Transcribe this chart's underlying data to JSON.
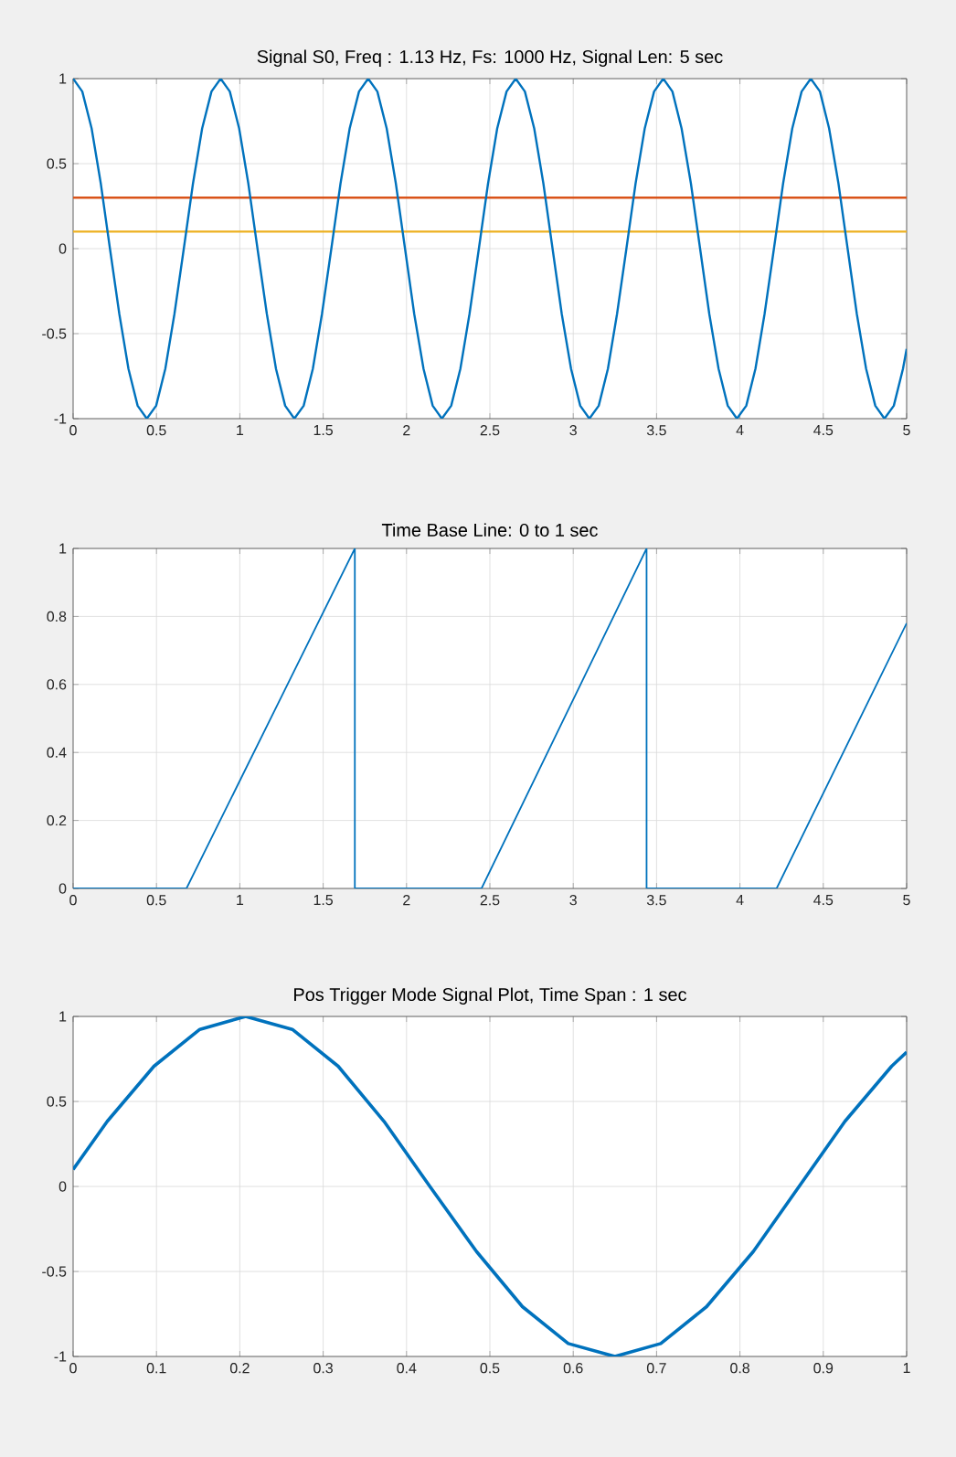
{
  "chart_data": [
    {
      "type": "line",
      "title": "Signal S0, Freq : 1.13 Hz, Fs: 1000 Hz, Signal Len: 5 sec",
      "xlim": [
        0,
        5
      ],
      "ylim": [
        -1,
        1
      ],
      "xticks": [
        0,
        0.5,
        1,
        1.5,
        2,
        2.5,
        3,
        3.5,
        4,
        4.5,
        5
      ],
      "yticks": [
        -1,
        -0.5,
        0,
        0.5,
        1
      ],
      "grid": true,
      "marker": "none",
      "line_style": "solid",
      "series": [
        {
          "color": "#0072bd",
          "x": [
            0,
            0.055,
            0.111,
            0.166,
            0.221,
            0.277,
            0.332,
            0.387,
            0.442,
            0.498,
            0.553,
            0.608,
            0.664,
            0.719,
            0.774,
            0.83,
            0.885,
            0.94,
            0.996,
            1.051,
            1.106,
            1.162,
            1.217,
            1.272,
            1.327,
            1.383,
            1.438,
            1.493,
            1.549,
            1.604,
            1.659,
            1.715,
            1.77,
            1.825,
            1.881,
            1.936,
            1.991,
            2.046,
            2.102,
            2.157,
            2.212,
            2.268,
            2.323,
            2.378,
            2.434,
            2.489,
            2.544,
            2.6,
            2.655,
            2.71,
            2.766,
            2.821,
            2.876,
            2.931,
            2.987,
            3.042,
            3.097,
            3.153,
            3.208,
            3.263,
            3.319,
            3.374,
            3.429,
            3.485,
            3.54,
            3.595,
            3.65,
            3.706,
            3.761,
            3.816,
            3.872,
            3.927,
            3.982,
            4.038,
            4.093,
            4.148,
            4.204,
            4.259,
            4.314,
            4.37,
            4.425,
            4.48,
            4.535,
            4.591,
            4.646,
            4.701,
            4.757,
            4.812,
            4.867,
            4.923,
            4.978,
            5
          ],
          "values": [
            1,
            0.924,
            0.707,
            0.383,
            0,
            -0.383,
            -0.707,
            -0.924,
            -1,
            -0.924,
            -0.707,
            -0.383,
            0,
            0.383,
            0.707,
            0.924,
            1,
            0.924,
            0.707,
            0.383,
            0,
            -0.383,
            -0.707,
            -0.924,
            -1,
            -0.924,
            -0.707,
            -0.383,
            0,
            0.383,
            0.707,
            0.924,
            1,
            0.924,
            0.707,
            0.383,
            0,
            -0.383,
            -0.707,
            -0.924,
            -1,
            -0.924,
            -0.707,
            -0.383,
            0,
            0.383,
            0.707,
            0.924,
            1,
            0.924,
            0.707,
            0.383,
            0,
            -0.383,
            -0.707,
            -0.924,
            -1,
            -0.924,
            -0.707,
            -0.383,
            0,
            0.383,
            0.707,
            0.924,
            1,
            0.924,
            0.707,
            0.383,
            0,
            -0.383,
            -0.707,
            -0.924,
            -1,
            -0.924,
            -0.707,
            -0.383,
            0,
            0.383,
            0.707,
            0.924,
            1,
            0.924,
            0.707,
            0.383,
            0,
            -0.383,
            -0.707,
            -0.924,
            -1,
            -0.924,
            -0.707,
            -0.59
          ]
        }
      ],
      "ref_lines": [
        {
          "axis": "y",
          "value": 0.3,
          "color": "#d95319"
        },
        {
          "axis": "y",
          "value": 0.1,
          "color": "#edb120"
        }
      ]
    },
    {
      "type": "line",
      "title": "Time Base Line: 0 to 1 sec",
      "xlim": [
        0,
        5
      ],
      "ylim": [
        0,
        1
      ],
      "xticks": [
        0,
        0.5,
        1,
        1.5,
        2,
        2.5,
        3,
        3.5,
        4,
        4.5,
        5
      ],
      "yticks": [
        0,
        0.2,
        0.4,
        0.6,
        0.8,
        1
      ],
      "grid": true,
      "marker": "none",
      "line_style": "solid",
      "series": [
        {
          "color": "#0072bd",
          "x": [
            0,
            0.68,
            1.69,
            1.69,
            2.45,
            3.44,
            3.44,
            4.22,
            5
          ],
          "values": [
            0,
            0,
            1,
            0,
            0,
            1,
            0,
            0,
            0.78
          ]
        }
      ]
    },
    {
      "type": "line",
      "title": "Pos  Trigger Mode Signal Plot, Time Span : 1 sec",
      "xlim": [
        0,
        1
      ],
      "ylim": [
        -1,
        1
      ],
      "xticks": [
        0,
        0.1,
        0.2,
        0.3,
        0.4,
        0.5,
        0.6,
        0.7,
        0.8,
        0.9,
        1
      ],
      "yticks": [
        -1,
        -0.5,
        0,
        0.5,
        1
      ],
      "grid": true,
      "marker": "none",
      "line_style": "solid",
      "series": [
        {
          "color": "#0072bd",
          "x": [
            0,
            0.041,
            0.097,
            0.152,
            0.207,
            0.263,
            0.318,
            0.373,
            0.428,
            0.484,
            0.539,
            0.594,
            0.65,
            0.705,
            0.76,
            0.816,
            0.871,
            0.926,
            0.982,
            1
          ],
          "values": [
            0.1,
            0.383,
            0.707,
            0.924,
            1,
            0.924,
            0.707,
            0.383,
            0,
            -0.383,
            -0.707,
            -0.924,
            -1,
            -0.924,
            -0.707,
            -0.383,
            0,
            0.383,
            0.707,
            0.79
          ]
        }
      ]
    }
  ]
}
